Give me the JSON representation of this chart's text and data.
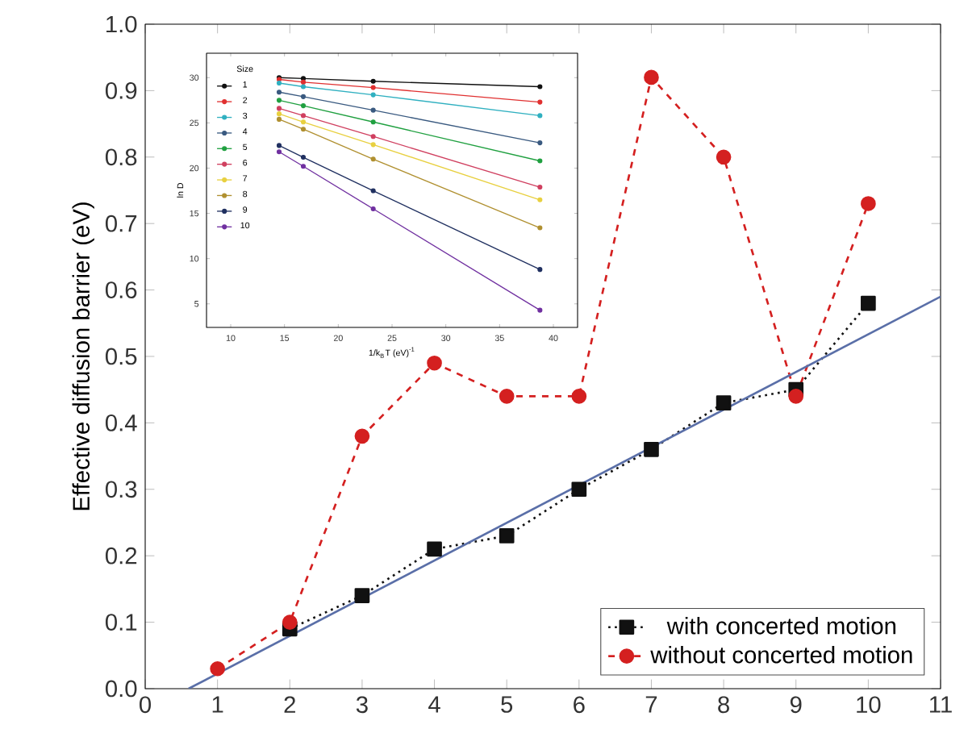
{
  "chart_data": [
    {
      "type": "line",
      "ylabel": "Effective diffusion barrier (eV)",
      "x": [
        1,
        2,
        3,
        4,
        5,
        6,
        7,
        8,
        9,
        10
      ],
      "xlim": [
        0,
        11
      ],
      "ylim": [
        0,
        1.0
      ],
      "xticks": [
        0,
        1,
        2,
        3,
        4,
        5,
        6,
        7,
        8,
        9,
        10,
        11
      ],
      "yticks": [
        {
          "value": 0,
          "label": "0.0"
        },
        0.1,
        0.2,
        0.3,
        0.4,
        0.5,
        0.6,
        0.7,
        0.8,
        0.9,
        {
          "value": 1,
          "label": "1.0"
        }
      ],
      "legend": "bottom right",
      "series": [
        {
          "name": "with concerted motion",
          "color": "#111111",
          "marker": "square",
          "line_style": "dotted",
          "values": [
            null,
            0.09,
            0.14,
            0.21,
            0.23,
            0.3,
            0.36,
            0.43,
            0.45,
            0.58
          ]
        },
        {
          "name": "without concerted motion",
          "color": "#d42020",
          "marker": "circle",
          "line_style": "dashed",
          "values": [
            0.03,
            0.1,
            0.38,
            0.49,
            0.44,
            0.44,
            0.92,
            0.8,
            0.44,
            0.73
          ]
        },
        {
          "type": "line",
          "color": "#5a6fa8",
          "marker": "none",
          "line_style": "solid",
          "x": [
            0.6,
            11
          ],
          "values": [
            0,
            0.59
          ]
        }
      ]
    },
    {
      "type": "line",
      "xlabel": "1/k$_{B}$T (eV)$^{-1}$",
      "ylabel": "ln D",
      "legend_title": "Size",
      "legend": "top left",
      "marker": "circle",
      "line_style": "solid",
      "x": [
        14.5,
        16.75,
        23.25,
        38.75
      ],
      "xlim": [
        7.75,
        42.25
      ],
      "ylim": [
        2.4,
        32.7
      ],
      "xticks": [
        10,
        15,
        20,
        25,
        30,
        35,
        40
      ],
      "yticks": [
        5,
        10,
        15,
        20,
        25,
        30
      ],
      "series": [
        {
          "name": "1",
          "color": "#111111",
          "values": [
            30.0,
            29.9,
            29.6,
            29.0
          ]
        },
        {
          "name": "2",
          "color": "#e03030",
          "values": [
            29.8,
            29.5,
            28.9,
            27.3
          ]
        },
        {
          "name": "3",
          "color": "#30b0c0",
          "values": [
            29.4,
            29.0,
            28.1,
            25.8
          ]
        },
        {
          "name": "4",
          "color": "#3a5a80",
          "values": [
            28.4,
            27.9,
            26.4,
            22.8
          ]
        },
        {
          "name": "5",
          "color": "#20a040",
          "values": [
            27.5,
            26.9,
            25.1,
            20.8
          ]
        },
        {
          "name": "6",
          "color": "#d04060",
          "values": [
            26.6,
            25.8,
            23.5,
            17.9
          ]
        },
        {
          "name": "7",
          "color": "#e8d040",
          "values": [
            26.0,
            25.1,
            22.6,
            16.5
          ]
        },
        {
          "name": "8",
          "color": "#b09030",
          "values": [
            25.4,
            24.3,
            21.0,
            13.4
          ]
        },
        {
          "name": "9",
          "color": "#203060",
          "values": [
            22.5,
            21.2,
            17.5,
            8.8
          ]
        },
        {
          "name": "10",
          "color": "#7030a0",
          "values": [
            21.8,
            20.2,
            15.5,
            4.3
          ]
        }
      ]
    }
  ]
}
